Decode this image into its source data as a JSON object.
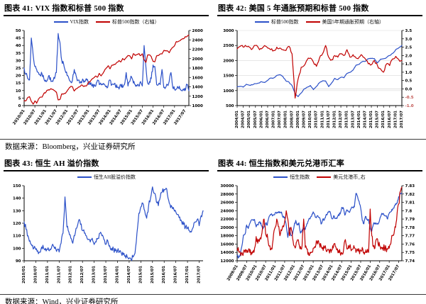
{
  "figures": [
    {
      "title": "图表 41: VIX 指数和标普 500 指数"
    },
    {
      "title": "图表 42: 美国 5 年通胀预期和标普 500 指数"
    },
    {
      "title": "图表 43: 恒生 AH 溢价指数"
    },
    {
      "title": "图表 44: 恒生指数和美元兑港币汇率"
    }
  ],
  "captions": {
    "top": "数据来源：Bloomberg，兴业证券研究所",
    "bottom": "数据来源：Wind，兴业证券研究所"
  },
  "colors": {
    "blue": "#2B50C8",
    "red": "#C00000",
    "axis": "#000000",
    "negative_tick": "#C0504D",
    "grid": "#D9D9D9"
  },
  "chart_data": [
    {
      "id": "chart-41",
      "type": "line",
      "title": "图表 41: VIX 指数和标普 500 指数",
      "freq": "monthly",
      "x_start": "2010/01",
      "x_tick_labels": [
        "2010/01",
        "2010/07",
        "2011/01",
        "2011/07",
        "2012/01",
        "2012/07",
        "2013/01",
        "2013/07",
        "2014/01",
        "2014/07",
        "2015/01",
        "2015/07",
        "2016/01",
        "2016/07",
        "2017/01",
        "2017/07"
      ],
      "x_tick_step": 6,
      "x_label_rotation": -55,
      "legend_position": "top",
      "grid": false,
      "left_axis": {
        "lim": [
          0,
          50
        ],
        "ticks": [
          0,
          5,
          10,
          15,
          20,
          25,
          30,
          35,
          40,
          45,
          50
        ],
        "labels": [
          "0",
          "5",
          "10",
          "15",
          "20",
          "25",
          "30",
          "35",
          "40",
          "45",
          "50"
        ]
      },
      "right_axis": {
        "lim": [
          1000,
          2600
        ],
        "ticks": [
          1000,
          1200,
          1400,
          1600,
          1800,
          2000,
          2200,
          2400,
          2600
        ],
        "labels": [
          "1000",
          "1200",
          "1400",
          "1600",
          "1800",
          "2000",
          "2200",
          "2400",
          "2600"
        ]
      },
      "series": [
        {
          "name": "VIX指数",
          "axis": "left",
          "color": "#2B50C8",
          "noise": 1.6,
          "values": [
            25,
            21,
            18,
            17,
            45,
            34,
            26,
            24,
            22,
            20,
            21,
            18,
            17,
            17,
            20,
            16,
            16,
            18,
            22,
            48,
            42,
            30,
            28,
            23,
            20,
            18,
            16,
            17,
            24,
            20,
            17,
            15,
            15,
            17,
            16,
            17,
            14,
            14,
            13,
            14,
            13,
            17,
            14,
            14,
            14,
            14,
            13,
            14,
            17,
            14,
            14,
            13,
            12,
            11,
            14,
            12,
            14,
            22,
            13,
            16,
            19,
            15,
            14,
            13,
            13,
            16,
            13,
            40,
            26,
            15,
            16,
            18,
            27,
            26,
            14,
            14,
            14,
            24,
            12,
            12,
            14,
            16,
            22,
            12,
            11,
            11,
            12,
            11,
            10,
            11,
            10,
            14,
            10
          ]
        },
        {
          "name": "标普500指数（右轴）",
          "axis": "right",
          "color": "#C00000",
          "noise": 9,
          "values": [
            1100,
            1105,
            1170,
            1190,
            1090,
            1030,
            1100,
            1050,
            1140,
            1180,
            1180,
            1258,
            1280,
            1330,
            1330,
            1360,
            1345,
            1320,
            1290,
            1120,
            1130,
            1250,
            1245,
            1258,
            1310,
            1365,
            1408,
            1400,
            1310,
            1360,
            1380,
            1405,
            1440,
            1410,
            1415,
            1426,
            1498,
            1515,
            1569,
            1598,
            1630,
            1606,
            1686,
            1633,
            1682,
            1757,
            1806,
            1848,
            1783,
            1859,
            1872,
            1884,
            1924,
            1960,
            1930,
            2003,
            1972,
            2018,
            2068,
            2059,
            1995,
            2105,
            2068,
            2086,
            2107,
            2063,
            2104,
            1972,
            1920,
            2079,
            2080,
            2044,
            1940,
            1932,
            2060,
            2065,
            2097,
            2099,
            2174,
            2171,
            2168,
            2126,
            2199,
            2239,
            2279,
            2364,
            2363,
            2384,
            2412,
            2423,
            2470,
            2472,
            2500
          ]
        }
      ]
    },
    {
      "id": "chart-42",
      "type": "line",
      "title": "图表 42: 美国 5 年通胀预期和标普 500 指数",
      "freq": "quarterly",
      "x_start": "2004/01",
      "x_tick_labels": [
        "2004/01",
        "2004/07",
        "2005/01",
        "2005/07",
        "2006/01",
        "2006/07",
        "2007/01",
        "2007/07",
        "2008/01",
        "2008/07",
        "2009/01",
        "2009/07",
        "2010/01",
        "2010/07",
        "2011/01",
        "2011/07",
        "2012/01",
        "2012/07",
        "2013/01",
        "2013/07",
        "2014/01",
        "2014/07",
        "2015/01",
        "2015/07",
        "2016/01",
        "2016/07",
        "2017/01",
        "2017/07"
      ],
      "x_tick_step": 2,
      "x_label_rotation": -90,
      "legend_position": "top",
      "grid": true,
      "negative_tick_red": true,
      "zero_line_right": 0,
      "left_axis": {
        "lim": [
          500,
          3000
        ],
        "ticks": [
          500,
          1000,
          1500,
          2000,
          2500,
          3000
        ],
        "labels": [
          "500",
          "1000",
          "1500",
          "2000",
          "2500",
          "3000"
        ]
      },
      "right_axis": {
        "lim": [
          -1.0,
          3.5
        ],
        "ticks": [
          -1.0,
          -0.5,
          0.0,
          0.5,
          1.0,
          1.5,
          2.0,
          2.5,
          3.0,
          3.5
        ],
        "labels": [
          "-1.0",
          "-0.5",
          "0.0",
          "0.5",
          "1.0",
          "1.5",
          "2.0",
          "2.5",
          "3.0",
          "3.5"
        ]
      },
      "series": [
        {
          "name": "标普500指数",
          "axis": "left",
          "color": "#2B50C8",
          "noise": 14,
          "values": [
            1130,
            1140,
            1115,
            1210,
            1180,
            1190,
            1230,
            1250,
            1295,
            1270,
            1335,
            1418,
            1420,
            1503,
            1527,
            1468,
            1322,
            1280,
            1165,
            903,
            798,
            919,
            1057,
            1115,
            1169,
            1031,
            1141,
            1258,
            1326,
            1321,
            1131,
            1258,
            1408,
            1362,
            1441,
            1426,
            1569,
            1606,
            1682,
            1848,
            1872,
            1960,
            1972,
            2059,
            2068,
            2063,
            1920,
            2044,
            2060,
            2099,
            2168,
            2239,
            2363,
            2423,
            2500
          ]
        },
        {
          "name": "美国5年期通胀预期（右轴）",
          "axis": "right",
          "color": "#C00000",
          "noise": 0.09,
          "values": [
            2.4,
            2.55,
            2.5,
            2.55,
            2.5,
            2.4,
            2.6,
            2.45,
            2.4,
            2.6,
            2.45,
            2.35,
            2.3,
            2.5,
            2.45,
            2.35,
            2.3,
            2.55,
            2.1,
            -0.55,
            0.6,
            1.3,
            1.4,
            1.75,
            1.85,
            1.6,
            1.35,
            1.85,
            2.1,
            2.6,
            1.9,
            1.75,
            2.0,
            1.9,
            2.1,
            2.0,
            2.35,
            1.9,
            2.05,
            1.85,
            1.9,
            2.0,
            1.8,
            1.5,
            1.45,
            1.7,
            1.4,
            1.2,
            1.0,
            1.5,
            1.4,
            1.8,
            1.95,
            1.75,
            1.7
          ]
        }
      ]
    },
    {
      "id": "chart-43",
      "type": "line",
      "title": "图表 43: 恒生 AH 溢价指数",
      "freq": "monthly",
      "x_start": "2010/01",
      "x_tick_labels": [
        "2010/01",
        "2010/07",
        "2011/01",
        "2011/07",
        "2012/01",
        "2012/07",
        "2013/01",
        "2013/07",
        "2014/01",
        "2014/07",
        "2015/01",
        "2015/07",
        "2016/01",
        "2016/07",
        "2017/01",
        "2017/07"
      ],
      "x_tick_step": 6,
      "x_label_rotation": -90,
      "legend_position": "top",
      "grid": false,
      "left_axis": {
        "lim": [
          90,
          150
        ],
        "ticks": [
          90,
          100,
          110,
          120,
          130,
          140,
          150
        ],
        "labels": [
          "90",
          "100",
          "110",
          "120",
          "130",
          "140",
          "150"
        ]
      },
      "series": [
        {
          "name": "恒生AH股溢价指数",
          "axis": "left",
          "color": "#2B50C8",
          "noise": 2.2,
          "values": [
            121,
            115,
            110,
            106,
            102,
            100,
            99,
            98,
            97,
            101,
            100,
            100,
            99,
            98,
            100,
            102,
            101,
            99,
            97,
            104,
            112,
            141,
            117,
            113,
            108,
            104,
            110,
            116,
            122,
            119,
            114,
            112,
            110,
            107,
            105,
            108,
            103,
            105,
            108,
            112,
            110,
            107,
            103,
            106,
            102,
            100,
            99,
            98,
            98,
            97,
            96,
            95,
            94,
            93,
            92,
            91,
            93,
            96,
            112,
            128,
            133,
            136,
            130,
            124,
            134,
            140,
            149,
            144,
            137,
            134,
            141,
            145,
            147,
            148,
            140,
            135,
            133,
            131,
            129,
            127,
            125,
            121,
            119,
            117,
            116,
            114,
            113,
            117,
            121,
            123,
            118,
            126,
            130
          ]
        }
      ]
    },
    {
      "id": "chart-44",
      "type": "line",
      "title": "图表 44: 恒生指数和美元兑港币汇率",
      "freq": "monthly",
      "x_start": "2009/01",
      "x_tick_labels": [
        "2009/01",
        "2009/07",
        "2010/01",
        "2010/07",
        "2011/01",
        "2011/07",
        "2012/01",
        "2012/07",
        "2013/01",
        "2013/07",
        "2014/01",
        "2014/07",
        "2015/01",
        "2015/07",
        "2016/01",
        "2016/07",
        "2017/01",
        "2017/07"
      ],
      "x_tick_step": 6,
      "x_label_rotation": -60,
      "legend_position": "top",
      "grid": false,
      "left_axis": {
        "lim": [
          12000,
          30000
        ],
        "ticks": [
          12000,
          14000,
          16000,
          18000,
          20000,
          22000,
          24000,
          26000,
          28000,
          30000
        ],
        "labels": [
          "12000",
          "14000",
          "16000",
          "18000",
          "20000",
          "22000",
          "24000",
          "26000",
          "28000",
          "30000"
        ]
      },
      "right_axis": {
        "lim": [
          7.74,
          7.83
        ],
        "ticks": [
          7.74,
          7.75,
          7.76,
          7.77,
          7.78,
          7.79,
          7.8,
          7.81,
          7.82,
          7.83
        ],
        "labels": [
          "7.74",
          "7.75",
          "7.76",
          "7.77",
          "7.78",
          "7.79",
          "7.8",
          "7.81",
          "7.82",
          "7.83"
        ]
      },
      "series": [
        {
          "name": "恒生指数",
          "axis": "left",
          "color": "#2B50C8",
          "noise": 320,
          "values": [
            13278,
            12812,
            13576,
            15521,
            18171,
            18378,
            20573,
            19724,
            20955,
            21753,
            21822,
            21873,
            20122,
            20609,
            21239,
            21109,
            19765,
            20129,
            21030,
            20537,
            22358,
            23096,
            23007,
            23035,
            23447,
            23338,
            23528,
            23721,
            23684,
            22398,
            22440,
            20535,
            17592,
            19865,
            17989,
            18434,
            20390,
            21680,
            20556,
            21095,
            18629,
            19441,
            19796,
            19483,
            20840,
            21641,
            22030,
            22657,
            23730,
            23020,
            22300,
            22737,
            22392,
            20803,
            21884,
            21731,
            22860,
            23206,
            23881,
            23306,
            22035,
            22837,
            22151,
            22134,
            23082,
            23190,
            24757,
            24742,
            22933,
            23998,
            23987,
            23605,
            24507,
            24823,
            24901,
            28133,
            27424,
            26250,
            24636,
            21671,
            20846,
            22640,
            21996,
            21914,
            19683,
            19112,
            20777,
            21067,
            20815,
            20794,
            21891,
            22977,
            23297,
            22935,
            22790,
            22001,
            23361,
            23741,
            24112,
            24615,
            25661,
            25765,
            27324,
            27970,
            28100
          ]
        },
        {
          "name": "美元兑港币_右",
          "axis": "right",
          "color": "#C00000",
          "noise": 0.004,
          "values": [
            7.754,
            7.751,
            7.75,
            7.75,
            7.75,
            7.75,
            7.75,
            7.751,
            7.75,
            7.75,
            7.75,
            7.755,
            7.769,
            7.761,
            7.763,
            7.766,
            7.779,
            7.79,
            7.772,
            7.772,
            7.758,
            7.753,
            7.754,
            7.772,
            7.78,
            7.79,
            7.781,
            7.77,
            7.776,
            7.782,
            7.787,
            7.8,
            7.79,
            7.77,
            7.78,
            7.767,
            7.758,
            7.757,
            7.765,
            7.76,
            7.757,
            7.758,
            7.79,
            7.756,
            7.754,
            7.75,
            7.75,
            7.75,
            7.755,
            7.757,
            7.764,
            7.764,
            7.76,
            7.758,
            7.756,
            7.755,
            7.754,
            7.753,
            7.752,
            7.754,
            7.753,
            7.76,
            7.757,
            7.753,
            7.752,
            7.75,
            7.75,
            7.75,
            7.764,
            7.758,
            7.755,
            7.757,
            7.752,
            7.754,
            7.756,
            7.75,
            7.753,
            7.752,
            7.752,
            7.756,
            7.75,
            7.75,
            7.75,
            7.75,
            7.802,
            7.77,
            7.757,
            7.755,
            7.766,
            7.76,
            7.758,
            7.756,
            7.756,
            7.755,
            7.755,
            7.754,
            7.755,
            7.76,
            7.77,
            7.772,
            7.78,
            7.797,
            7.808,
            7.823,
            7.828
          ]
        }
      ]
    }
  ]
}
